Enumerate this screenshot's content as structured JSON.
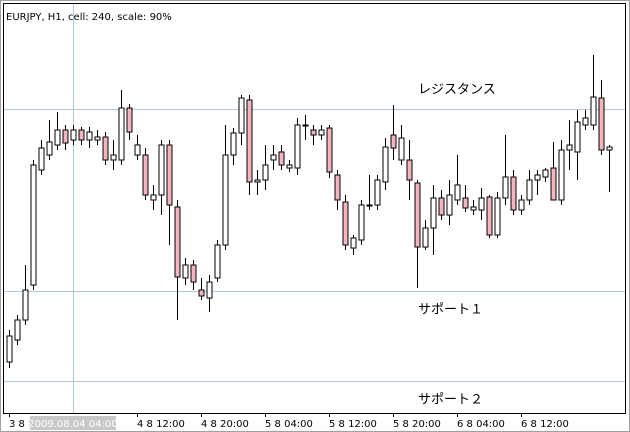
{
  "chart_data": {
    "type": "candlestick",
    "title": "EURJPY, H1, cell: 240, scale: 90%",
    "categories": [
      "3 8 2",
      null,
      null,
      null,
      null,
      null,
      null,
      null,
      null,
      null,
      null,
      null,
      null,
      null,
      null,
      null,
      "4 8 12:00",
      null,
      null,
      null,
      null,
      null,
      null,
      null,
      "4 8 20:00",
      null,
      null,
      null,
      null,
      null,
      null,
      null,
      "5 8 04:00",
      null,
      null,
      null,
      null,
      null,
      null,
      null,
      "5 8 12:00",
      null,
      null,
      null,
      null,
      null,
      null,
      null,
      "5 8 20:00",
      null,
      null,
      null,
      null,
      null,
      null,
      null,
      "6 8 04:00",
      null,
      null,
      null,
      null,
      null,
      null,
      null,
      "6 8 12:00",
      null,
      null,
      null,
      null,
      null,
      null,
      null,
      null,
      null,
      null,
      null
    ],
    "open": [
      51,
      73,
      93,
      128,
      243,
      258,
      268,
      283,
      273,
      283,
      273,
      273,
      276,
      253,
      253,
      305,
      258,
      258,
      213,
      218,
      268,
      206,
      135,
      148,
      123,
      115,
      135,
      168,
      258,
      280,
      313,
      231,
      233,
      253,
      261,
      245,
      245,
      288,
      283,
      278,
      285,
      238,
      211,
      165,
      173,
      208,
      208,
      231,
      278,
      253,
      253,
      230,
      166,
      185,
      215,
      198,
      213,
      215,
      203,
      203,
      216,
      178,
      215,
      236,
      203,
      213,
      233,
      236,
      245,
      213,
      263,
      261,
      288,
      288,
      315,
      263
    ],
    "high": [
      83,
      98,
      148,
      253,
      273,
      293,
      301,
      288,
      288,
      286,
      286,
      283,
      281,
      273,
      323,
      309,
      278,
      265,
      228,
      273,
      273,
      213,
      155,
      153,
      135,
      138,
      173,
      288,
      285,
      318,
      318,
      243,
      268,
      268,
      268,
      253,
      295,
      298,
      288,
      288,
      288,
      243,
      218,
      178,
      213,
      238,
      238,
      275,
      308,
      288,
      273,
      233,
      193,
      228,
      223,
      233,
      258,
      228,
      213,
      225,
      218,
      221,
      278,
      243,
      218,
      243,
      243,
      245,
      271,
      273,
      293,
      303,
      303,
      358,
      333,
      268
    ],
    "low": [
      45,
      68,
      88,
      123,
      238,
      253,
      263,
      263,
      268,
      268,
      265,
      268,
      248,
      243,
      248,
      273,
      253,
      213,
      203,
      198,
      168,
      93,
      128,
      123,
      113,
      101,
      131,
      163,
      248,
      268,
      218,
      218,
      223,
      243,
      243,
      241,
      238,
      273,
      268,
      273,
      235,
      203,
      163,
      158,
      168,
      203,
      203,
      223,
      253,
      248,
      213,
      125,
      163,
      158,
      193,
      188,
      208,
      201,
      198,
      193,
      175,
      175,
      208,
      198,
      198,
      208,
      218,
      231,
      213,
      208,
      243,
      233,
      283,
      283,
      258,
      221
    ],
    "close": [
      77,
      93,
      123,
      248,
      265,
      271,
      283,
      270,
      283,
      273,
      281,
      276,
      253,
      258,
      305,
      281,
      268,
      218,
      218,
      268,
      208,
      136,
      148,
      131,
      117,
      131,
      168,
      258,
      280,
      315,
      231,
      233,
      248,
      258,
      248,
      248,
      288,
      288,
      278,
      283,
      241,
      213,
      168,
      175,
      208,
      208,
      233,
      266,
      265,
      275,
      233,
      166,
      185,
      215,
      198,
      218,
      228,
      205,
      206,
      215,
      178,
      215,
      236,
      203,
      213,
      233,
      238,
      243,
      213,
      263,
      268,
      291,
      295,
      316,
      263,
      266
    ],
    "up_color": "#ffffff",
    "down_color": "#f4b4c0",
    "outline_color": "#000000",
    "ylim": [
      0,
      410
    ],
    "hlines": [
      {
        "name": "レジスタンス",
        "value": 304
      },
      {
        "name": "サポート１",
        "value": 122
      },
      {
        "name": "サポート２",
        "value": 32
      }
    ],
    "hline_color": "#b4c8dc",
    "crosshair_label": "2009.08.04 04:00"
  }
}
